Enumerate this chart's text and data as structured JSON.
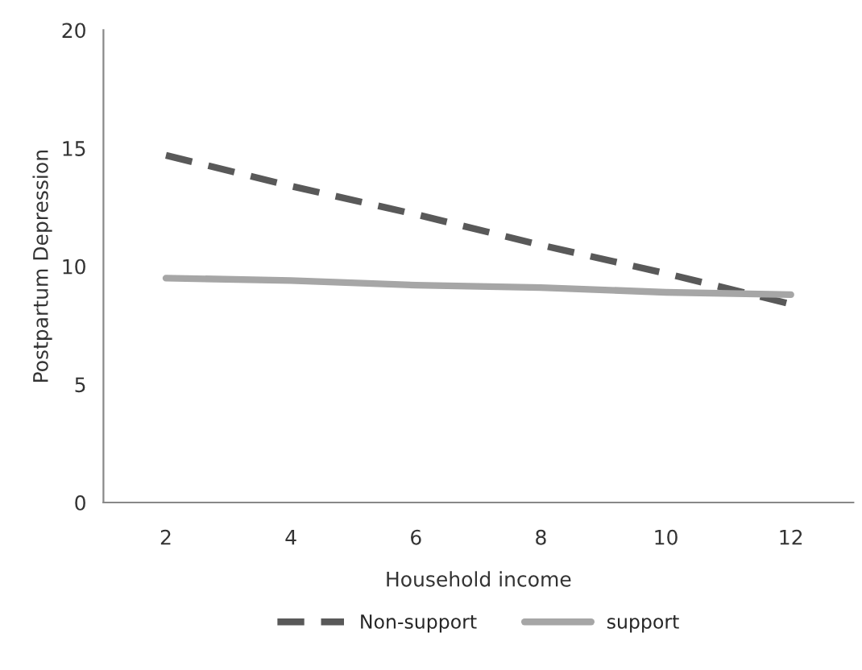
{
  "chart_data": {
    "type": "line",
    "xlabel": "Household income",
    "ylabel": "Postpartum Depression",
    "categories": [
      "2",
      "4",
      "6",
      "8",
      "10",
      "12"
    ],
    "series": [
      {
        "name": "Non-support",
        "color": "#595959",
        "line_style": "dashed",
        "values": [
          14.7,
          13.4,
          12.2,
          10.9,
          9.7,
          8.4
        ]
      },
      {
        "name": "support",
        "color": "#a6a6a6",
        "line_style": "solid",
        "values": [
          9.5,
          9.4,
          9.2,
          9.1,
          8.9,
          8.8
        ]
      }
    ],
    "ylim": [
      0,
      20
    ],
    "yticks": [
      0,
      5,
      10,
      15,
      20
    ],
    "grid": false,
    "legend": "bottom",
    "marker": "none"
  }
}
